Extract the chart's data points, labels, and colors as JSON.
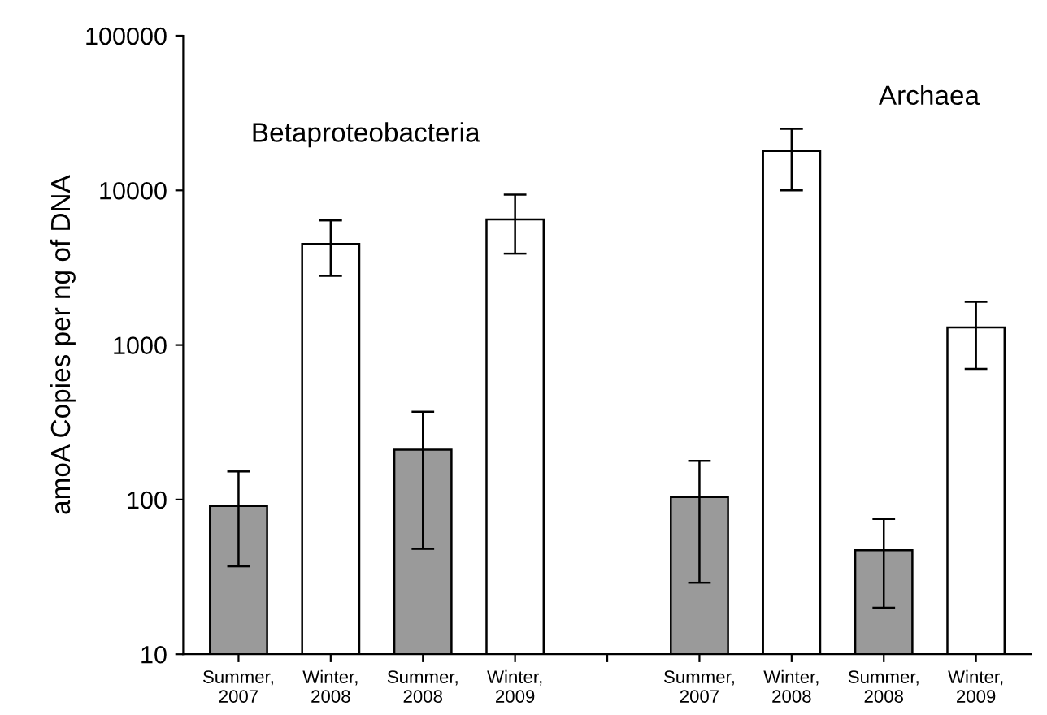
{
  "chart_data": {
    "type": "bar",
    "ylabel": "amoA Copies per ng of DNA",
    "categories": [
      "Summer,\n2007",
      "Winter,\n2008",
      "Summer,\n2008",
      "Winter,\n2009",
      null,
      "Summer,\n2007",
      "Winter,\n2008",
      "Summer,\n2008",
      "Winter,\n2009"
    ],
    "values": [
      91,
      4500,
      210,
      6500,
      null,
      104,
      18000,
      47,
      1300
    ],
    "errors": [
      [
        37,
        152
      ],
      [
        2800,
        6400
      ],
      [
        48,
        370
      ],
      [
        3900,
        9400
      ],
      null,
      [
        29,
        178
      ],
      [
        10000,
        25000
      ],
      [
        20,
        75
      ],
      [
        700,
        1900
      ]
    ],
    "colors": [
      "#9a9a9a",
      "#ffffff",
      "#9a9a9a",
      "#ffffff",
      "#ffffff",
      "#9a9a9a",
      "#ffffff",
      "#9a9a9a",
      "#ffffff"
    ],
    "log": "y",
    "ylim": [
      10,
      100000
    ],
    "yticks": [
      10,
      100,
      1000,
      10000,
      100000
    ],
    "annotations": [
      "Betaproteobacteria",
      "Archaea"
    ]
  }
}
